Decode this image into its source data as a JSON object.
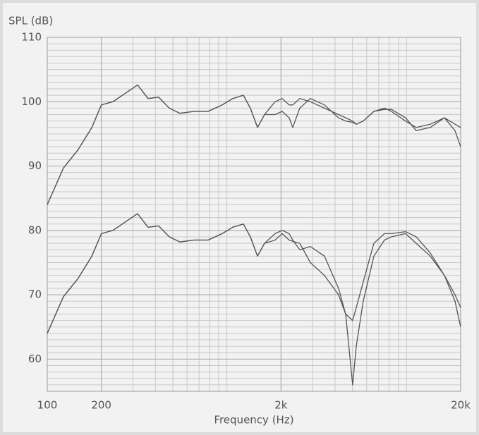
{
  "chart_data": {
    "type": "line",
    "ylabel": "SPL (dB)",
    "xlabel": "Frequency (Hz)",
    "xscale": "log",
    "xlim": [
      100,
      20000
    ],
    "ylim": [
      55,
      110
    ],
    "xticks": [
      100,
      200,
      {
        "value": 2000,
        "label": "2k"
      },
      {
        "value": 20000,
        "label": "20k"
      }
    ],
    "yticks": [
      60,
      70,
      80,
      90,
      100,
      110
    ],
    "grid": true,
    "minor_grid": true,
    "x": [
      100,
      123,
      148,
      177,
      200,
      232,
      278,
      318,
      364,
      417,
      478,
      547,
      655,
      786,
      941,
      1078,
      1235,
      1351,
      1479,
      1619,
      1854,
      2030,
      2220,
      2325,
      2544,
      2914,
      3490,
      4183,
      4580,
      5010,
      5245,
      5740,
      6575,
      7530,
      8240,
      9870,
      11310,
      13550,
      16240,
      18600,
      20000
    ],
    "series": [
      {
        "color": "#555555",
        "values": [
          84,
          89.7,
          92.5,
          96,
          99.5,
          100,
          101.5,
          102.6,
          100.5,
          100.7,
          99,
          98.2,
          98.5,
          98.5,
          99.5,
          100.5,
          101,
          99,
          96,
          98,
          100,
          100.5,
          99.5,
          99.5,
          100.5,
          100,
          99,
          98,
          97.5,
          97,
          96.5,
          97,
          98.5,
          99,
          98.5,
          97,
          96,
          96.5,
          97.5,
          96.5,
          96
        ]
      },
      {
        "color": "#555555",
        "values": [
          84,
          89.7,
          92.5,
          96,
          99.5,
          100,
          101.5,
          102.6,
          100.5,
          100.7,
          99,
          98.2,
          98.5,
          98.5,
          99.5,
          100.5,
          101,
          99,
          96,
          98,
          98,
          98.5,
          97.5,
          96,
          99,
          100.5,
          99.5,
          97.5,
          97,
          96.8,
          96.5,
          97,
          98.5,
          98.8,
          98.8,
          97.5,
          95.5,
          96,
          97.5,
          95.5,
          93
        ]
      },
      {
        "color": "#555555",
        "values": [
          64,
          69.7,
          72.5,
          76,
          79.5,
          80,
          81.5,
          82.6,
          80.5,
          80.7,
          79,
          78.2,
          78.5,
          78.5,
          79.5,
          80.5,
          81,
          79,
          76,
          78,
          78.5,
          79.5,
          78.5,
          78.3,
          78,
          75,
          73,
          70,
          67,
          56,
          62,
          69,
          76,
          78.5,
          79,
          79.5,
          78,
          76,
          73,
          69,
          65
        ]
      },
      {
        "color": "#555555",
        "values": [
          64,
          69.7,
          72.5,
          76,
          79.5,
          80,
          81.5,
          82.6,
          80.5,
          80.7,
          79,
          78.2,
          78.5,
          78.5,
          79.5,
          80.5,
          81,
          79,
          76,
          78,
          79.5,
          80,
          79.5,
          78.5,
          77,
          77.5,
          76,
          71,
          67,
          66,
          68,
          72,
          78,
          79.5,
          79.5,
          79.8,
          79,
          76.5,
          73,
          70,
          68
        ]
      }
    ]
  }
}
